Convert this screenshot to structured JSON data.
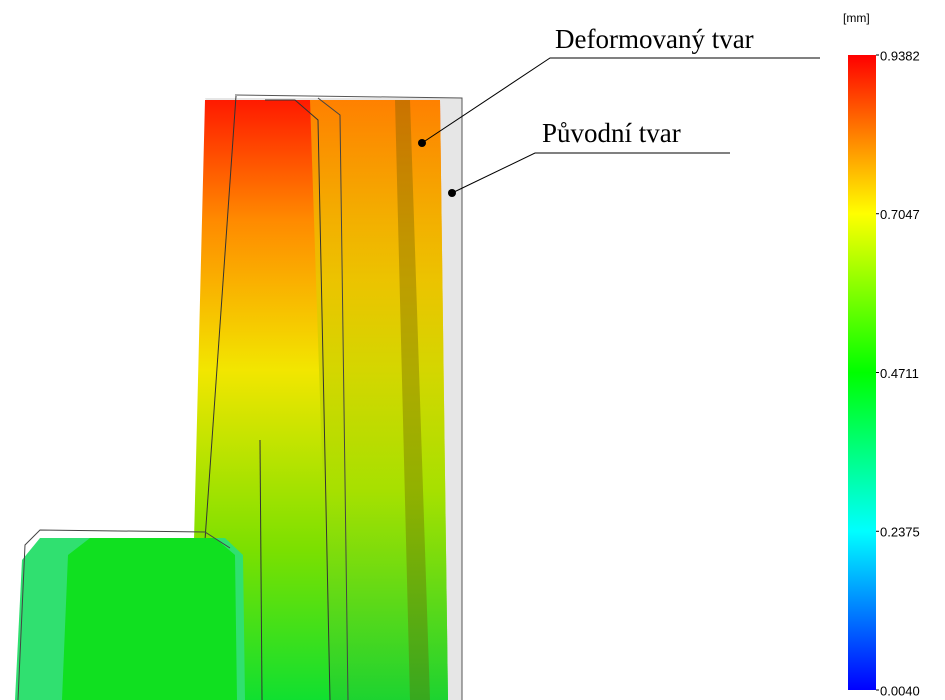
{
  "annotations": [
    {
      "text": "Deformovaný tvar"
    },
    {
      "text": "Původní tvar"
    }
  ],
  "colorbar": {
    "unit": "[mm]",
    "range": [
      0.004,
      0.9382
    ],
    "ticks": [
      0.9382,
      0.7047,
      0.4711,
      0.2375,
      {
        "value": 0.004,
        "label": "0.0040"
      }
    ]
  }
}
